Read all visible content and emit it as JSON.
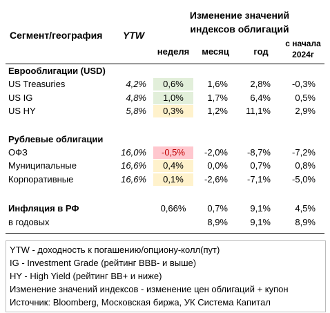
{
  "header": {
    "segment": "Сегмент/география",
    "ytw": "YTW",
    "change_title": "Изменение значений индексов облигаций",
    "week": "неделя",
    "month": "месяц",
    "year": "год",
    "ytd": "с начала 2024г"
  },
  "sections": [
    {
      "title": "Еврооблигации (USD)",
      "rows": [
        {
          "name": "US Treasuries",
          "ytw": "4,2%",
          "week": "0,6%",
          "week_color": "#e2efda",
          "month": "1,6%",
          "year": "2,8%",
          "ytd": "-0,3%"
        },
        {
          "name": "US IG",
          "ytw": "4,8%",
          "week": "1,0%",
          "week_color": "#e2efda",
          "month": "1,7%",
          "year": "6,4%",
          "ytd": "0,5%"
        },
        {
          "name": "US HY",
          "ytw": "5,8%",
          "week": "0,3%",
          "week_color": "#fff2cc",
          "month": "1,2%",
          "year": "11,1%",
          "ytd": "2,9%"
        }
      ]
    },
    {
      "title": "Рублевые облигации",
      "rows": [
        {
          "name": "ОФЗ",
          "ytw": "16,0%",
          "week": "-0,5%",
          "week_color": "#ffc7ce",
          "week_text_color": "#c00000",
          "month": "-2,0%",
          "year": "-8,7%",
          "ytd": "-7,2%"
        },
        {
          "name": "Муниципальные",
          "ytw": "16,6%",
          "week": "0,4%",
          "week_color": "#fff2cc",
          "month": "0,0%",
          "year": "0,7%",
          "ytd": "0,8%"
        },
        {
          "name": "Корпоративные",
          "ytw": "16,6%",
          "week": "0,1%",
          "week_color": "#fff2cc",
          "month": "-2,6%",
          "year": "-7,1%",
          "ytd": "-5,0%"
        }
      ]
    }
  ],
  "inflation": {
    "rows": [
      {
        "name": "Инфляция в РФ",
        "week": "0,66%",
        "month": "0,7%",
        "year": "9,1%",
        "ytd": "4,5%"
      },
      {
        "name": "в годовых",
        "month": "8,9%",
        "year": "9,1%",
        "ytd": "8,9%"
      }
    ]
  },
  "notes": [
    "YTW - доходность к погашению/опциону-колл(пут)",
    "IG - Investment Grade (рейтинг BBB- и выше)",
    "HY - High Yield (рейтинг BB+ и ниже)",
    "Изменение значений индексов - изменение цен облигаций + купон",
    "Источник: Bloomberg, Московская биржа, УК Система Капитал"
  ]
}
